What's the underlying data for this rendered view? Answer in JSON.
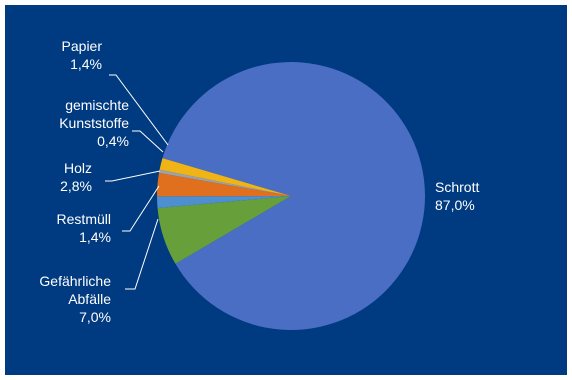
{
  "chart_data": {
    "type": "pie",
    "title": "",
    "legend": "none",
    "decimal_separator": ",",
    "slices": [
      {
        "label": "Schrott",
        "label_lines": [
          "Schrott"
        ],
        "value": 87.0,
        "value_text": "87,0%",
        "color": "#4a6ec4"
      },
      {
        "label": "Gefährliche Abfälle",
        "label_lines": [
          "Gefährliche",
          "Abfälle"
        ],
        "value": 7.0,
        "value_text": "7,0%",
        "color": "#67a03a"
      },
      {
        "label": "Restmüll",
        "label_lines": [
          "Restmüll"
        ],
        "value": 1.4,
        "value_text": "1,4%",
        "color": "#4d8fd0"
      },
      {
        "label": "Holz",
        "label_lines": [
          "Holz"
        ],
        "value": 2.8,
        "value_text": "2,8%",
        "color": "#e0701e"
      },
      {
        "label": "gemischte Kunststoffe",
        "label_lines": [
          "gemischte",
          "Kunststoffe"
        ],
        "value": 0.4,
        "value_text": "0,4%",
        "color": "#9ea2a8"
      },
      {
        "label": "Papier",
        "label_lines": [
          "Papier"
        ],
        "value": 1.4,
        "value_text": "1,4%",
        "color": "#f1b417"
      }
    ],
    "colors": {
      "background": "#003a80",
      "text": "#ffffff"
    }
  }
}
